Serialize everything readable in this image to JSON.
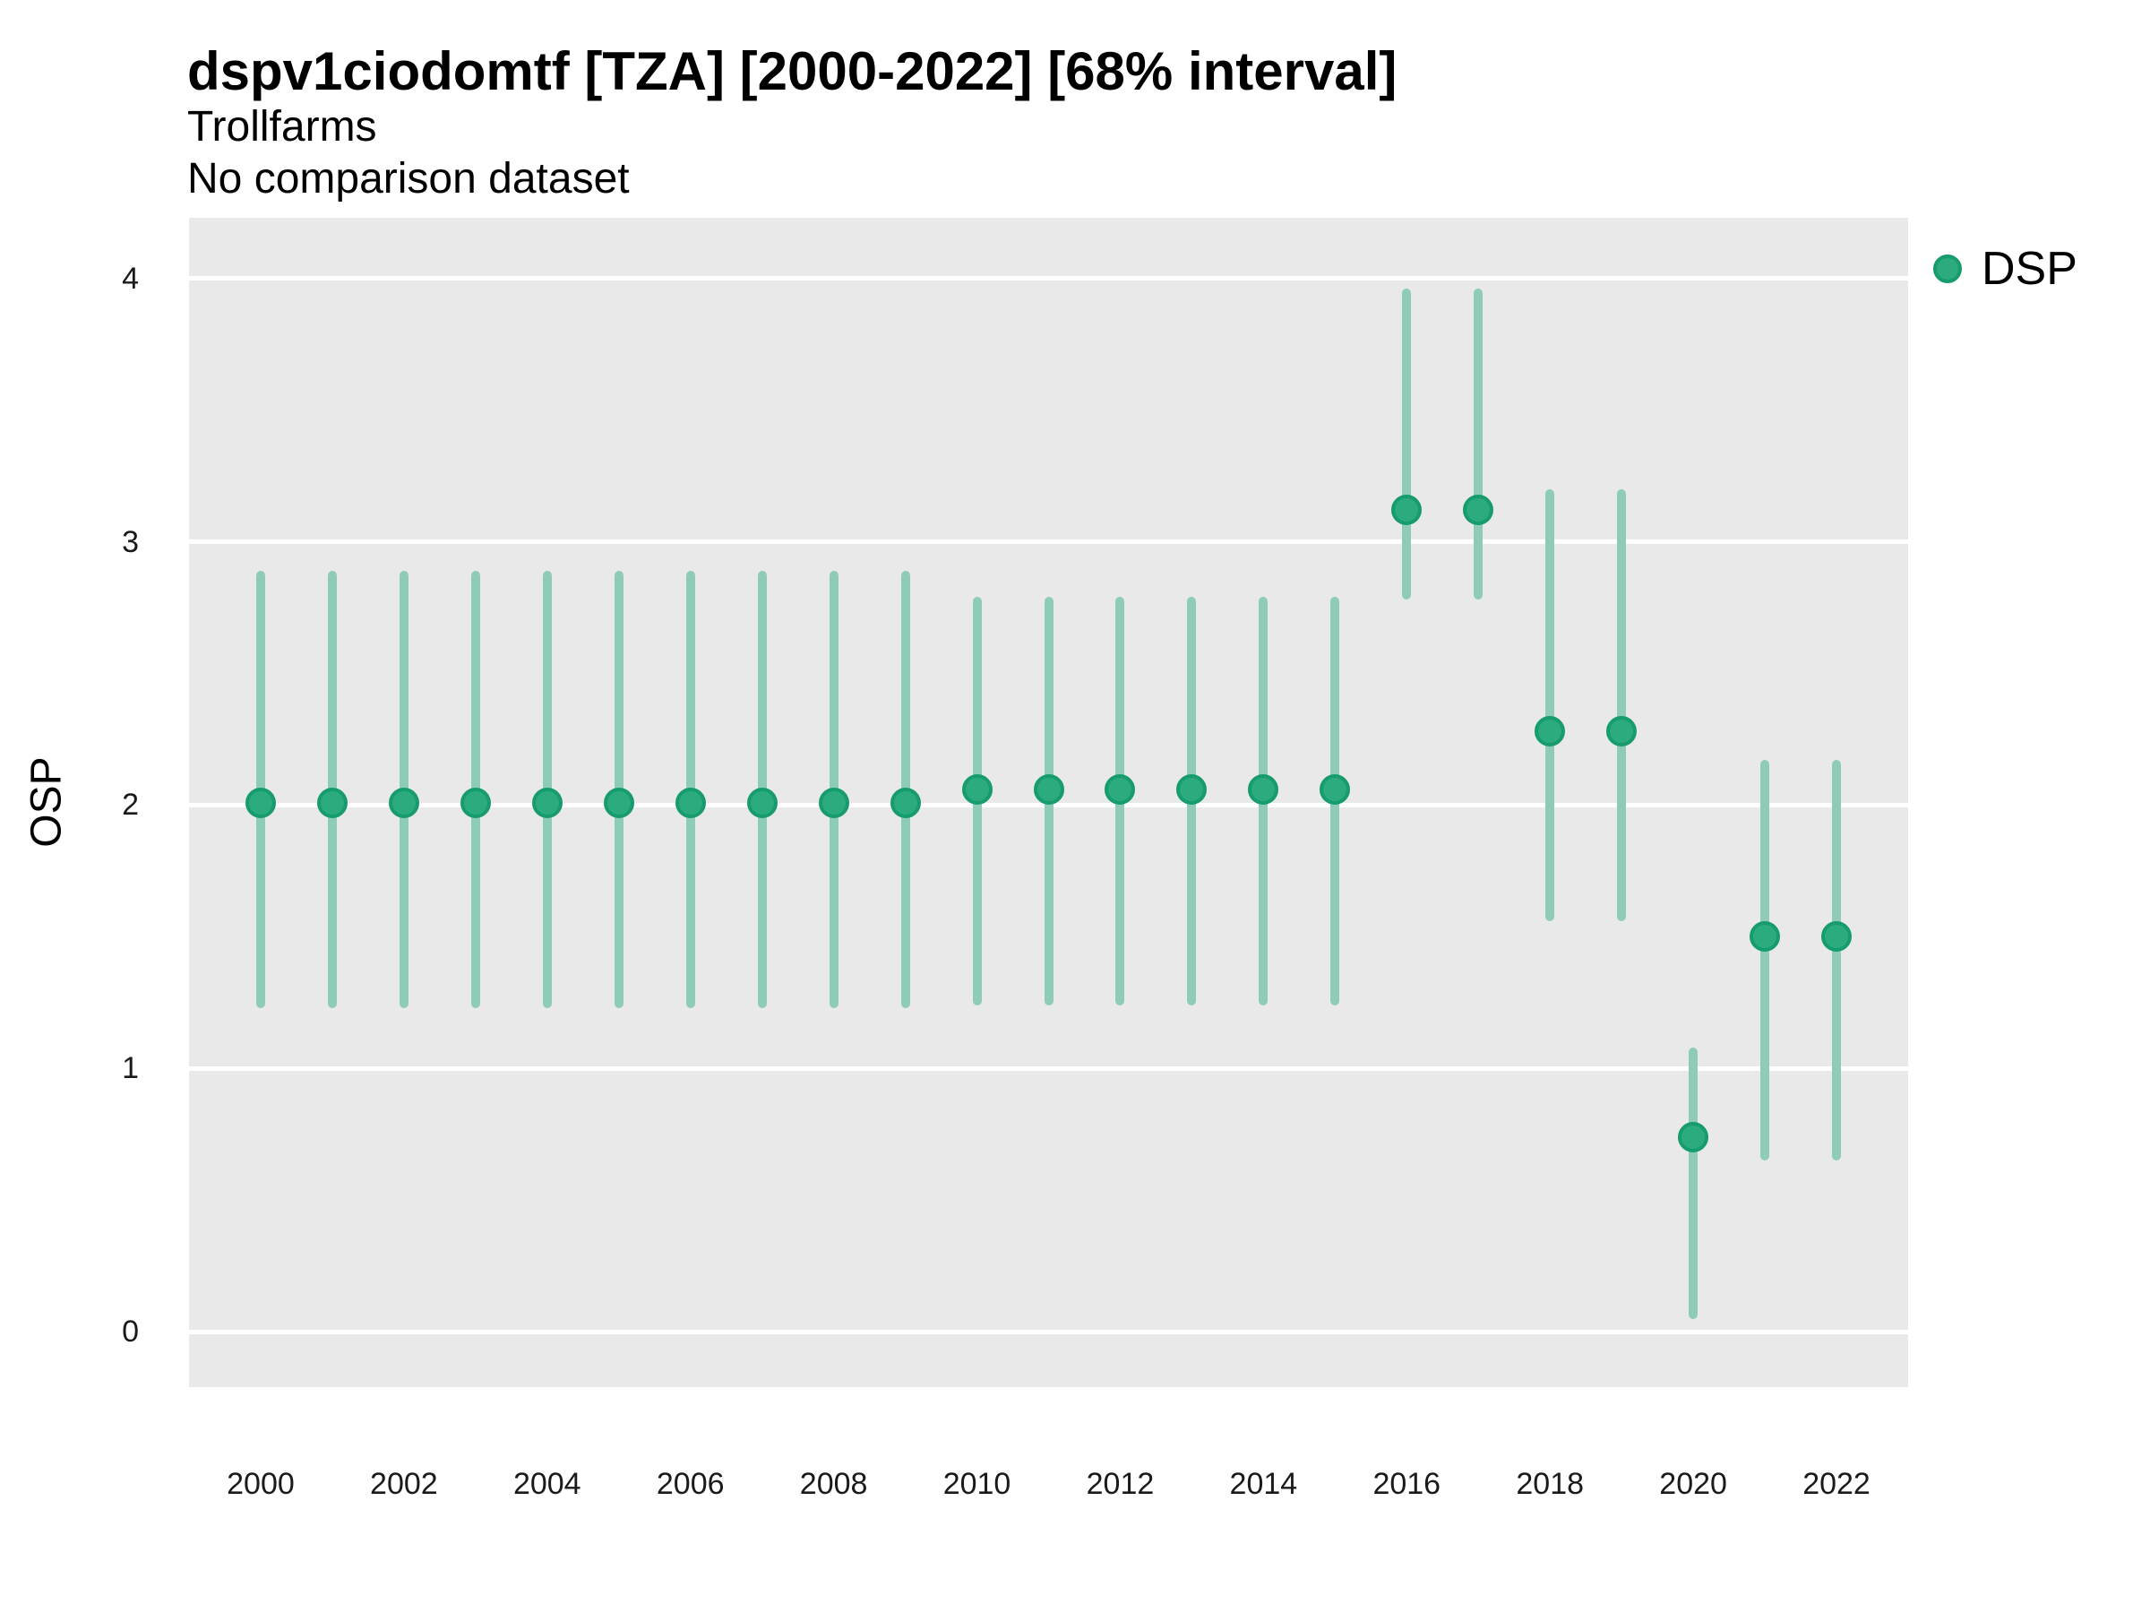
{
  "header": {
    "title": "dspv1ciodomtf [TZA] [2000-2022] [68% interval]",
    "subtitle": "Trollfarms",
    "subtitle2": "No comparison dataset"
  },
  "legend": {
    "position": "right",
    "items": [
      {
        "label": "DSP",
        "marker": "circle"
      }
    ]
  },
  "colors": {
    "point_fill": "#2bab7e",
    "point_stroke": "#179c6d",
    "interval_bar": "#8fccb8",
    "panel_bg": "#e9e9e9",
    "gridline": "#ffffff",
    "text": "#000000"
  },
  "chart_data": {
    "type": "scatter",
    "title": "dspv1ciodomtf [TZA] [2000-2022] [68% interval]",
    "subtitle": "Trollfarms",
    "subtitle2": "No comparison dataset",
    "xlabel": "",
    "ylabel": "OSP",
    "interval": "68%",
    "legend_entries": [
      "DSP"
    ],
    "legend_position": "right",
    "grid": "major horizontal white gridlines on gray panel",
    "x": [
      2000,
      2001,
      2002,
      2003,
      2004,
      2005,
      2006,
      2007,
      2008,
      2009,
      2010,
      2011,
      2012,
      2013,
      2014,
      2015,
      2016,
      2017,
      2018,
      2019,
      2020,
      2021,
      2022
    ],
    "series": [
      {
        "name": "DSP",
        "values": [
          2.01,
          2.01,
          2.01,
          2.01,
          2.01,
          2.01,
          2.01,
          2.01,
          2.01,
          2.01,
          2.06,
          2.06,
          2.06,
          2.06,
          2.06,
          2.06,
          3.12,
          3.12,
          2.28,
          2.28,
          0.74,
          1.5,
          1.5
        ],
        "lower_68": [
          1.23,
          1.23,
          1.23,
          1.23,
          1.23,
          1.23,
          1.23,
          1.23,
          1.23,
          1.23,
          1.24,
          1.24,
          1.24,
          1.24,
          1.24,
          1.24,
          2.78,
          2.78,
          1.56,
          1.56,
          0.05,
          0.65,
          0.65
        ],
        "upper_68": [
          2.89,
          2.89,
          2.89,
          2.89,
          2.89,
          2.89,
          2.89,
          2.89,
          2.89,
          2.89,
          2.79,
          2.79,
          2.79,
          2.79,
          2.79,
          2.79,
          3.96,
          3.96,
          3.2,
          3.2,
          1.08,
          2.17,
          2.17
        ]
      }
    ],
    "xticks": [
      2000,
      2002,
      2004,
      2006,
      2008,
      2010,
      2012,
      2014,
      2016,
      2018,
      2020,
      2022
    ],
    "yticks": [
      0,
      1,
      2,
      3,
      4
    ],
    "xlim": [
      1999,
      2023
    ],
    "ylim": [
      -0.21,
      4.23
    ]
  }
}
